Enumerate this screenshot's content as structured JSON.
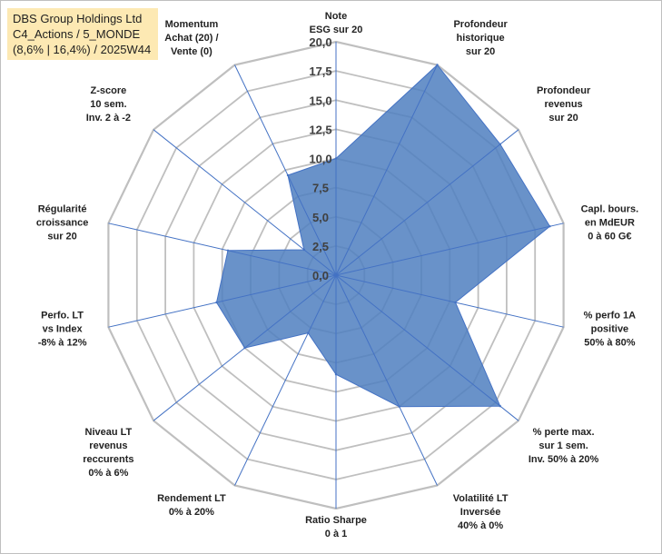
{
  "title": {
    "line1": "DBS Group Holdings Ltd",
    "line2": "C4_Actions / 5_MONDE",
    "line3": "(8,6% | 16,4%) / 2025W44"
  },
  "chart_data": {
    "type": "radar",
    "rmin": 0,
    "rmax": 20,
    "tick_step": 2.5,
    "tick_labels": [
      "0,0",
      "2,5",
      "5,0",
      "7,5",
      "10,0",
      "12,5",
      "15,0",
      "17,5",
      "20,0"
    ],
    "fill_color": "#4f7fbf",
    "line_color": "#4472c4",
    "grid_color": "#bfbfbf",
    "axes": [
      {
        "label": [
          "Note",
          "ESG sur 20"
        ],
        "value": 10.0
      },
      {
        "label": [
          "Profondeur",
          "historique",
          "sur 20"
        ],
        "value": 20.0
      },
      {
        "label": [
          "Profondeur",
          "revenus",
          "sur 20"
        ],
        "value": 18.0
      },
      {
        "label": [
          "Capl. bours.",
          "en MdEUR",
          "0 à 60 G€"
        ],
        "value": 18.8
      },
      {
        "label": [
          "% perfo 1A",
          "positive",
          "50% à 80%"
        ],
        "value": 10.5
      },
      {
        "label": [
          "% perte max.",
          "sur 1 sem.",
          "Inv. 50% à 20%"
        ],
        "value": 18.0
      },
      {
        "label": [
          "Volatilité LT",
          "Inversée",
          "40% à 0%"
        ],
        "value": 12.5
      },
      {
        "label": [
          "Ratio Sharpe",
          "0 à 1"
        ],
        "value": 8.5
      },
      {
        "label": [
          "Rendement LT",
          "0% à 20%"
        ],
        "value": 5.5
      },
      {
        "label": [
          "Niveau LT",
          "revenus",
          "reccurents",
          "0% à 6%"
        ],
        "value": 10.0
      },
      {
        "label": [
          "Perfo. LT",
          "vs Index",
          "-8% à 12%"
        ],
        "value": 10.5
      },
      {
        "label": [
          "Régularité",
          "croissance",
          "sur 20"
        ],
        "value": 9.5
      },
      {
        "label": [
          "Z-score",
          "10 sem.",
          "Inv. 2 à -2"
        ],
        "value": 3.5
      },
      {
        "label": [
          "Momentum",
          "Achat (20) /",
          "Vente (0)"
        ],
        "value": 9.5
      }
    ]
  }
}
